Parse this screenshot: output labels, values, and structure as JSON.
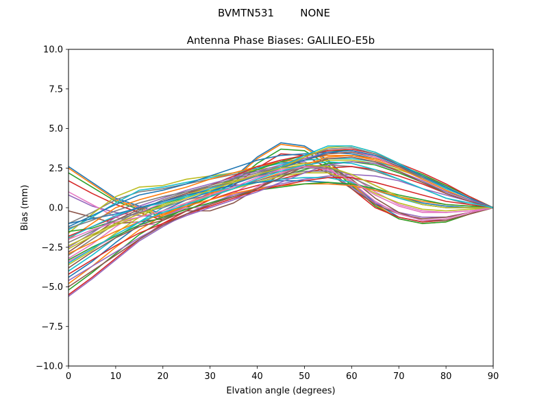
{
  "chart_data": {
    "type": "line",
    "suptitle": "BVMTN531        NONE",
    "title": "Antenna Phase Biases: GALILEO-E5b",
    "xlabel": "Elvation angle (degrees)",
    "ylabel": "Bias (mm)",
    "xlim": [
      0,
      90
    ],
    "ylim": [
      -10,
      10
    ],
    "xticks": [
      0,
      10,
      20,
      30,
      40,
      50,
      60,
      70,
      80,
      90
    ],
    "yticks": [
      -10.0,
      -7.5,
      -5.0,
      -2.5,
      0.0,
      2.5,
      5.0,
      7.5,
      10.0
    ],
    "grid": false,
    "legend": "none",
    "x": [
      0,
      5,
      10,
      15,
      20,
      25,
      30,
      35,
      40,
      45,
      50,
      55,
      60,
      65,
      70,
      75,
      80,
      85,
      90
    ],
    "colors": [
      "#1f77b4",
      "#ff7f0e",
      "#2ca02c",
      "#d62728",
      "#9467bd",
      "#8c564b",
      "#e377c2",
      "#7f7f7f",
      "#bcbd22",
      "#17becf"
    ],
    "series": [
      {
        "values": [
          2.6,
          1.6,
          0.6,
          0.1,
          -0.4,
          0.2,
          0.9,
          1.9,
          3.2,
          4.1,
          3.9,
          3.0,
          1.6,
          0.3,
          -0.6,
          -0.9,
          -0.8,
          -0.4,
          0.0
        ]
      },
      {
        "values": [
          2.5,
          1.5,
          0.5,
          0.0,
          -0.5,
          0.1,
          0.8,
          1.8,
          3.1,
          4.0,
          3.8,
          2.9,
          1.5,
          0.2,
          -0.7,
          -1.0,
          -0.9,
          -0.4,
          0.0
        ]
      },
      {
        "values": [
          2.2,
          1.3,
          0.4,
          -0.1,
          -0.6,
          0.0,
          0.7,
          1.6,
          2.8,
          3.7,
          3.6,
          2.7,
          1.4,
          0.1,
          -0.7,
          -1.0,
          -0.9,
          -0.4,
          0.0
        ]
      },
      {
        "values": [
          1.7,
          0.9,
          0.2,
          -0.3,
          -0.8,
          -0.2,
          0.5,
          1.4,
          2.5,
          3.4,
          3.3,
          2.5,
          1.2,
          0.0,
          -0.6,
          -0.9,
          -0.8,
          -0.4,
          0.0
        ]
      },
      {
        "values": [
          0.8,
          0.1,
          -0.3,
          -0.5,
          -0.6,
          0.1,
          1.0,
          1.9,
          2.6,
          3.0,
          2.9,
          2.3,
          1.3,
          0.3,
          -0.3,
          -0.6,
          -0.6,
          -0.3,
          0.0
        ]
      },
      {
        "values": [
          -0.2,
          -0.6,
          -1.0,
          -0.9,
          -0.7,
          0.0,
          0.9,
          1.8,
          2.5,
          2.9,
          2.8,
          2.2,
          1.2,
          0.2,
          -0.4,
          -0.7,
          -0.6,
          -0.3,
          0.0
        ]
      },
      {
        "values": [
          1.0,
          0.2,
          -0.6,
          -1.0,
          -1.1,
          -0.5,
          0.2,
          0.9,
          1.8,
          2.5,
          2.7,
          2.6,
          2.0,
          1.0,
          0.2,
          -0.2,
          -0.3,
          -0.2,
          0.0
        ]
      },
      {
        "values": [
          -1.0,
          -0.3,
          0.5,
          1.0,
          1.2,
          1.5,
          1.8,
          2.1,
          2.3,
          2.5,
          2.6,
          2.7,
          2.6,
          2.3,
          1.8,
          1.2,
          0.6,
          0.2,
          0.0
        ]
      },
      {
        "values": [
          -1.6,
          -0.4,
          0.7,
          1.3,
          1.4,
          1.8,
          2.0,
          2.2,
          2.4,
          2.6,
          2.8,
          3.0,
          3.0,
          2.8,
          2.4,
          1.9,
          1.3,
          0.6,
          0.0
        ]
      },
      {
        "values": [
          -1.4,
          -0.6,
          0.3,
          1.1,
          1.3,
          1.6,
          1.9,
          2.2,
          2.5,
          2.8,
          3.0,
          3.1,
          3.1,
          2.9,
          2.5,
          1.9,
          1.3,
          0.6,
          0.0
        ]
      },
      {
        "values": [
          -1.2,
          -0.5,
          0.2,
          0.8,
          1.1,
          1.5,
          2.0,
          2.5,
          3.0,
          3.3,
          3.4,
          3.5,
          3.4,
          3.1,
          2.6,
          2.0,
          1.3,
          0.6,
          0.0
        ]
      },
      {
        "values": [
          -2.0,
          -1.0,
          0.0,
          0.5,
          0.9,
          1.3,
          1.8,
          2.2,
          2.6,
          2.9,
          3.1,
          3.3,
          3.3,
          3.1,
          2.6,
          2.0,
          1.4,
          0.7,
          0.0
        ]
      },
      {
        "values": [
          -1.5,
          -1.3,
          -0.8,
          -0.3,
          0.2,
          0.7,
          1.2,
          1.8,
          2.4,
          2.9,
          3.3,
          3.6,
          3.6,
          3.3,
          2.7,
          2.1,
          1.4,
          0.7,
          0.0
        ]
      },
      {
        "values": [
          -1.8,
          -1.2,
          -0.6,
          0.0,
          0.4,
          0.9,
          1.4,
          2.0,
          2.6,
          3.0,
          3.3,
          3.6,
          3.7,
          3.4,
          2.8,
          2.2,
          1.5,
          0.7,
          0.0
        ]
      },
      {
        "values": [
          -2.5,
          -1.6,
          -0.6,
          0.1,
          0.6,
          1.1,
          1.5,
          1.9,
          2.3,
          2.7,
          3.1,
          3.5,
          3.6,
          3.3,
          2.7,
          2.0,
          1.3,
          0.6,
          0.0
        ]
      },
      {
        "values": [
          -2.8,
          -1.8,
          -0.8,
          -0.1,
          0.4,
          0.9,
          1.3,
          1.7,
          2.1,
          2.6,
          3.0,
          3.4,
          3.5,
          3.2,
          2.6,
          1.9,
          1.2,
          0.6,
          0.0
        ]
      },
      {
        "values": [
          -3.2,
          -2.3,
          -1.2,
          -0.3,
          0.3,
          0.8,
          1.2,
          1.7,
          2.1,
          2.5,
          3.0,
          3.5,
          3.6,
          3.2,
          2.5,
          1.8,
          1.1,
          0.5,
          0.0
        ]
      },
      {
        "values": [
          -3.0,
          -2.0,
          -1.0,
          -0.2,
          0.5,
          1.0,
          1.4,
          1.8,
          2.2,
          2.6,
          3.2,
          3.7,
          3.8,
          3.4,
          2.7,
          1.9,
          1.2,
          0.6,
          0.0
        ]
      },
      {
        "values": [
          -3.6,
          -2.7,
          -1.6,
          -0.6,
          0.2,
          0.8,
          1.3,
          1.7,
          2.0,
          2.5,
          3.2,
          3.8,
          3.9,
          3.5,
          2.8,
          2.0,
          1.2,
          0.6,
          0.0
        ]
      },
      {
        "values": [
          -4.0,
          -3.0,
          -1.9,
          -0.9,
          0.0,
          0.7,
          1.2,
          1.6,
          2.0,
          2.6,
          3.3,
          3.9,
          3.9,
          3.5,
          2.8,
          2.0,
          1.2,
          0.6,
          0.0
        ]
      },
      {
        "values": [
          -4.4,
          -3.4,
          -2.2,
          -1.1,
          -0.2,
          0.5,
          1.0,
          1.5,
          2.0,
          2.5,
          3.0,
          3.5,
          3.6,
          3.3,
          2.7,
          2.0,
          1.3,
          0.6,
          0.0
        ]
      },
      {
        "values": [
          -4.8,
          -3.7,
          -2.5,
          -1.4,
          -0.5,
          0.3,
          0.9,
          1.3,
          1.7,
          2.2,
          2.7,
          3.2,
          3.3,
          3.0,
          2.5,
          1.8,
          1.1,
          0.5,
          0.0
        ]
      },
      {
        "values": [
          -5.2,
          -4.1,
          -2.9,
          -1.7,
          -0.8,
          0.0,
          0.7,
          1.2,
          1.6,
          2.0,
          2.4,
          2.8,
          2.9,
          2.7,
          2.2,
          1.6,
          1.0,
          0.5,
          0.0
        ]
      },
      {
        "values": [
          -5.5,
          -4.4,
          -3.2,
          -2.0,
          -1.0,
          -0.2,
          0.5,
          1.0,
          1.4,
          1.8,
          2.2,
          2.5,
          2.6,
          2.4,
          2.0,
          1.5,
          0.9,
          0.4,
          0.0
        ]
      },
      {
        "values": [
          -5.6,
          -4.5,
          -3.3,
          -2.1,
          -1.2,
          -0.4,
          0.3,
          0.8,
          1.2,
          1.5,
          1.8,
          2.0,
          2.1,
          2.0,
          1.7,
          1.2,
          0.8,
          0.4,
          0.0
        ]
      },
      {
        "values": [
          -3.8,
          -2.8,
          -1.9,
          -1.2,
          -0.8,
          -0.2,
          -0.2,
          0.3,
          1.2,
          2.1,
          2.6,
          2.6,
          1.8,
          0.6,
          -0.3,
          -0.8,
          -0.8,
          -0.4,
          0.0
        ]
      },
      {
        "values": [
          -3.4,
          -2.6,
          -1.8,
          -1.1,
          -0.6,
          0.0,
          0.0,
          0.5,
          1.3,
          2.2,
          2.6,
          2.5,
          1.6,
          0.4,
          -0.4,
          -0.8,
          -0.7,
          -0.3,
          0.0
        ]
      },
      {
        "values": [
          -2.2,
          -1.5,
          -0.8,
          -0.3,
          0.0,
          0.5,
          0.8,
          1.2,
          1.7,
          2.1,
          2.3,
          2.3,
          1.9,
          1.2,
          0.6,
          0.2,
          0.0,
          0.0,
          0.0
        ]
      },
      {
        "values": [
          -2.6,
          -1.8,
          -1.1,
          -0.6,
          -0.2,
          0.3,
          0.7,
          1.2,
          1.6,
          2.0,
          2.2,
          2.2,
          1.7,
          0.9,
          0.3,
          -0.1,
          -0.2,
          -0.1,
          0.0
        ]
      },
      {
        "values": [
          -1.9,
          -1.2,
          -0.5,
          0.0,
          0.3,
          0.7,
          1.0,
          1.3,
          1.6,
          1.8,
          1.9,
          1.9,
          1.6,
          1.1,
          0.6,
          0.2,
          0.0,
          0.0,
          0.0
        ]
      },
      {
        "values": [
          -1.0,
          -0.7,
          -0.4,
          0.0,
          0.4,
          0.8,
          1.1,
          1.4,
          1.6,
          1.7,
          1.7,
          1.6,
          1.4,
          1.1,
          0.7,
          0.3,
          0.1,
          0.0,
          0.0
        ]
      },
      {
        "values": [
          -2.9,
          -2.2,
          -1.5,
          -0.9,
          -0.4,
          0.1,
          0.5,
          0.9,
          1.2,
          1.4,
          1.5,
          1.5,
          1.4,
          1.1,
          0.7,
          0.4,
          0.2,
          0.1,
          0.0
        ]
      },
      {
        "values": [
          -3.3,
          -2.5,
          -1.8,
          -1.1,
          -0.6,
          -0.1,
          0.3,
          0.7,
          1.1,
          1.3,
          1.5,
          1.6,
          1.5,
          1.2,
          0.8,
          0.5,
          0.2,
          0.1,
          0.0
        ]
      },
      {
        "values": [
          -4.2,
          -3.3,
          -2.4,
          -1.6,
          -1.0,
          -0.4,
          0.1,
          0.6,
          1.1,
          1.4,
          1.7,
          1.9,
          1.9,
          1.6,
          1.2,
          0.8,
          0.4,
          0.2,
          0.0
        ]
      },
      {
        "values": [
          -4.6,
          -3.7,
          -2.8,
          -1.9,
          -1.1,
          -0.5,
          0.0,
          0.5,
          1.0,
          1.6,
          2.2,
          2.7,
          2.9,
          2.8,
          2.3,
          1.7,
          1.0,
          0.5,
          0.0
        ]
      },
      {
        "values": [
          -5.0,
          -4.0,
          -3.0,
          -2.0,
          -1.1,
          -0.4,
          0.2,
          0.7,
          1.2,
          1.9,
          2.6,
          3.1,
          3.2,
          2.9,
          2.3,
          1.6,
          0.9,
          0.4,
          0.0
        ]
      },
      {
        "values": [
          -2.0,
          -1.4,
          -0.9,
          -0.6,
          -0.2,
          0.3,
          0.8,
          1.3,
          1.9,
          2.4,
          2.6,
          2.4,
          1.7,
          0.8,
          0.1,
          -0.3,
          -0.3,
          -0.2,
          0.0
        ]
      },
      {
        "values": [
          -1.3,
          -0.8,
          -0.2,
          0.3,
          0.7,
          1.0,
          1.3,
          1.6,
          2.0,
          2.3,
          2.5,
          2.5,
          2.1,
          1.4,
          0.7,
          0.2,
          0.0,
          0.0,
          0.0
        ]
      },
      {
        "values": [
          -2.4,
          -1.7,
          -1.0,
          -0.4,
          0.1,
          0.6,
          1.1,
          1.6,
          2.1,
          2.5,
          2.7,
          2.6,
          2.1,
          1.4,
          0.7,
          0.2,
          0.0,
          0.0,
          0.0
        ]
      },
      {
        "values": [
          -3.5,
          -2.6,
          -1.7,
          -0.9,
          -0.3,
          0.2,
          0.7,
          1.2,
          1.8,
          2.3,
          2.7,
          2.9,
          2.8,
          2.4,
          1.8,
          1.2,
          0.6,
          0.3,
          0.0
        ]
      }
    ]
  }
}
